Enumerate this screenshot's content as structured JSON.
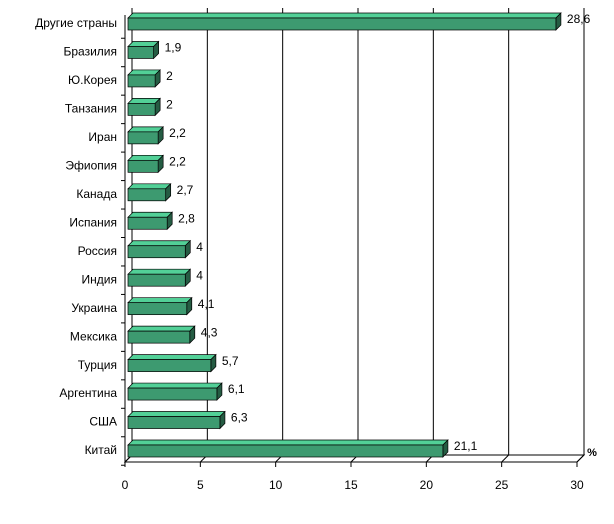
{
  "chart_data": {
    "type": "bar",
    "orientation": "horizontal",
    "categories": [
      "Другие страны",
      "Бразилия",
      "Ю.Корея",
      "Танзания",
      "Иран",
      "Эфиопия",
      "Канада",
      "Испания",
      "Россия",
      "Индия",
      "Украина",
      "Мексика",
      "Турция",
      "Аргентина",
      "США",
      "Китай"
    ],
    "values": [
      28.6,
      1.9,
      2,
      2,
      2.2,
      2.2,
      2.7,
      2.8,
      4,
      4,
      4.1,
      4.3,
      5.7,
      6.1,
      6.3,
      21.1
    ],
    "value_labels": [
      "28,6",
      "1,9",
      "2",
      "2",
      "2,2",
      "2,2",
      "2,7",
      "2,8",
      "4",
      "4",
      "4,1",
      "4,3",
      "5,7",
      "6,1",
      "6,3",
      "21,1"
    ],
    "color": "#3d9a70",
    "x_label": "%",
    "xlim": [
      0,
      30
    ],
    "xticks": [
      0,
      5,
      10,
      15,
      20,
      25,
      30
    ],
    "grid": true
  }
}
